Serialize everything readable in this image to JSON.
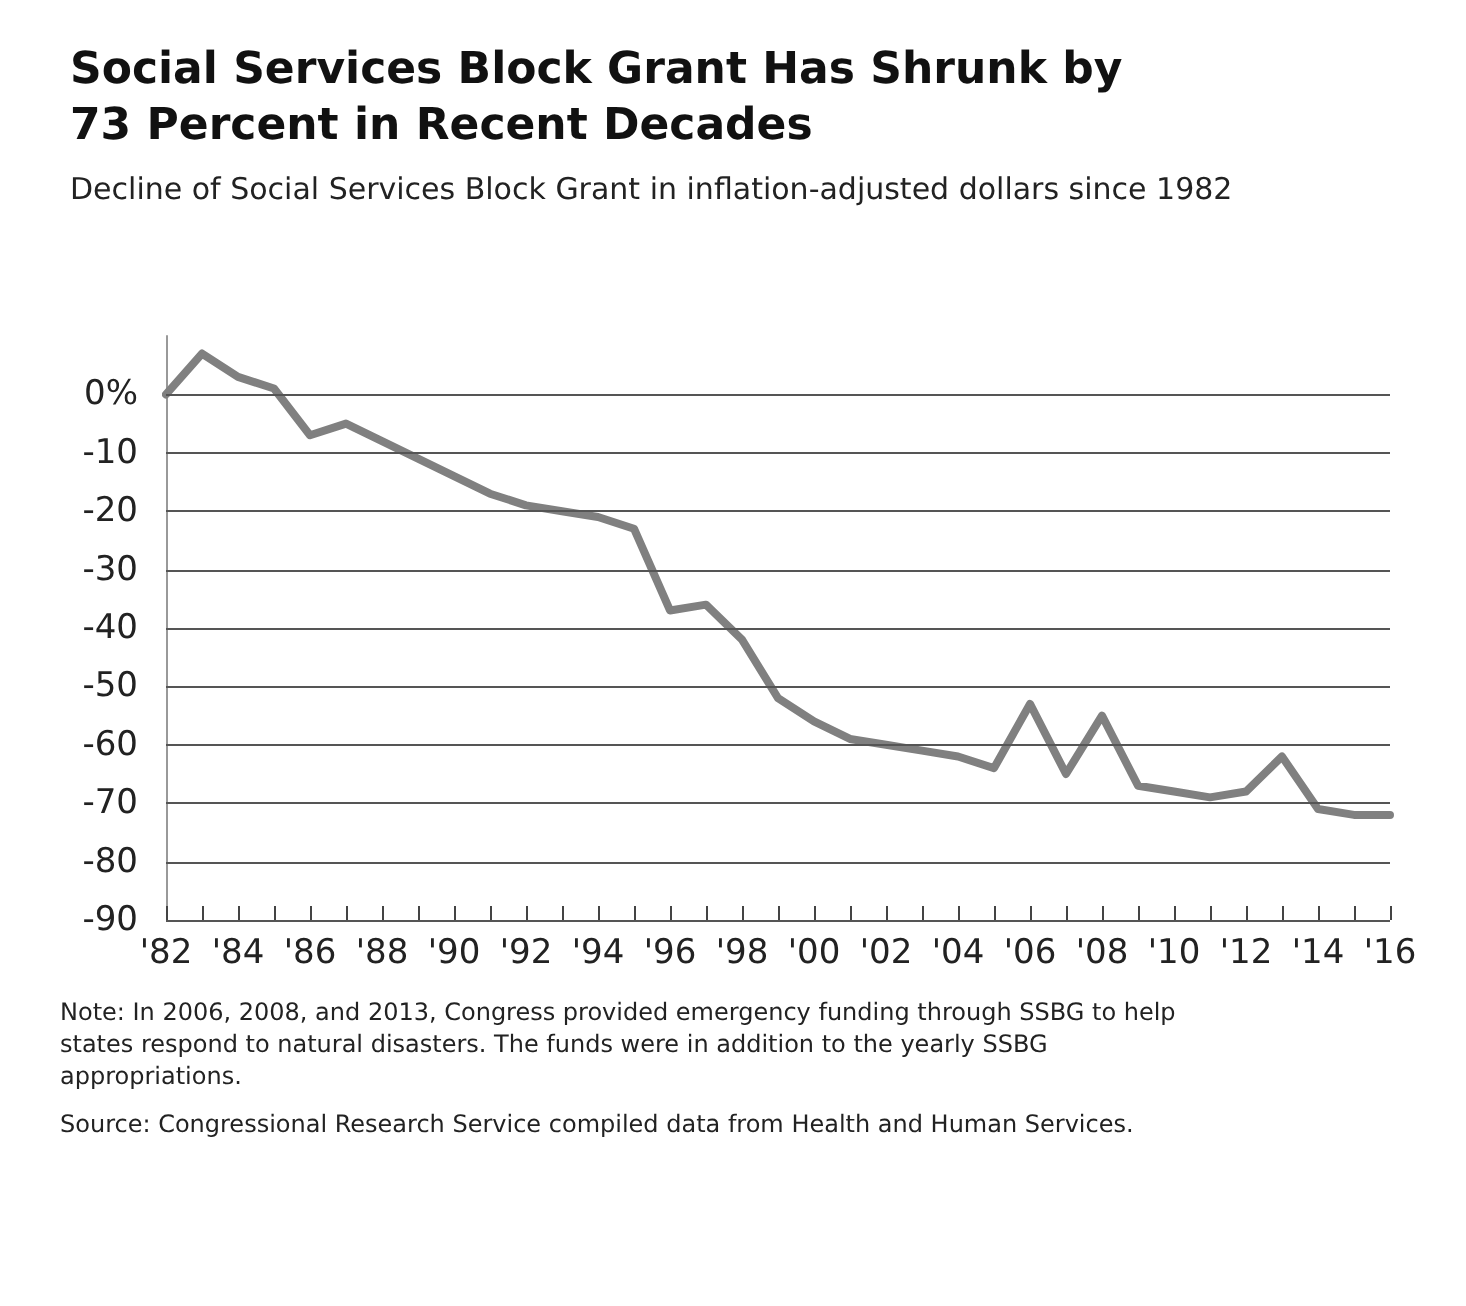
{
  "chart_data": {
    "type": "line",
    "title": "Social Services Block Grant Has Shrunk by 73 Percent in Recent Decades",
    "subtitle": "Decline of Social Services Block Grant in inflation-adjusted dollars since 1982",
    "x": [
      1982,
      1983,
      1984,
      1985,
      1986,
      1987,
      1988,
      1989,
      1990,
      1991,
      1992,
      1993,
      1994,
      1995,
      1996,
      1997,
      1998,
      1999,
      2000,
      2001,
      2002,
      2003,
      2004,
      2005,
      2006,
      2007,
      2008,
      2009,
      2010,
      2011,
      2012,
      2013,
      2014,
      2015,
      2016
    ],
    "series": [
      {
        "color": "#808080",
        "values": [
          0,
          7,
          3,
          1,
          -7,
          -5,
          -8,
          -11,
          -14,
          -17,
          -19,
          -20,
          -21,
          -23,
          -37,
          -36,
          -42,
          -52,
          -56,
          -59,
          -60,
          -61,
          -62,
          -64,
          -53,
          -65,
          -55,
          -67,
          -68,
          -69,
          -68,
          -62,
          -71,
          -72,
          -72
        ]
      }
    ],
    "xlim": [
      1982,
      2016
    ],
    "xticks": [
      {
        "value": 1982,
        "label": "'82"
      },
      {
        "value": 1984,
        "label": "'84"
      },
      {
        "value": 1986,
        "label": "'86"
      },
      {
        "value": 1988,
        "label": "'88"
      },
      {
        "value": 1990,
        "label": "'90"
      },
      {
        "value": 1992,
        "label": "'92"
      },
      {
        "value": 1994,
        "label": "'94"
      },
      {
        "value": 1996,
        "label": "'96"
      },
      {
        "value": 1998,
        "label": "'98"
      },
      {
        "value": 2000,
        "label": "'00"
      },
      {
        "value": 2002,
        "label": "'02"
      },
      {
        "value": 2004,
        "label": "'04"
      },
      {
        "value": 2006,
        "label": "'06"
      },
      {
        "value": 2008,
        "label": "'08"
      },
      {
        "value": 2010,
        "label": "'10"
      },
      {
        "value": 2012,
        "label": "'12"
      },
      {
        "value": 2014,
        "label": "'14"
      },
      {
        "value": 2016,
        "label": "'16"
      }
    ],
    "ylim": [
      -90,
      10
    ],
    "yticks": [
      {
        "value": 0,
        "label": "0%"
      },
      -10,
      -20,
      -30,
      -40,
      -50,
      -60,
      -70,
      -80,
      -90
    ],
    "grid": "y",
    "marker": "none",
    "line_style": "solid",
    "annotations": [
      "Note: In 2006, 2008, and 2013, Congress provided emergency funding through SSBG to help states respond to natural disasters. The funds were in addition to the yearly SSBG appropriations.",
      "Source: Congressional Research Service compiled data from Health and Human Services."
    ]
  }
}
